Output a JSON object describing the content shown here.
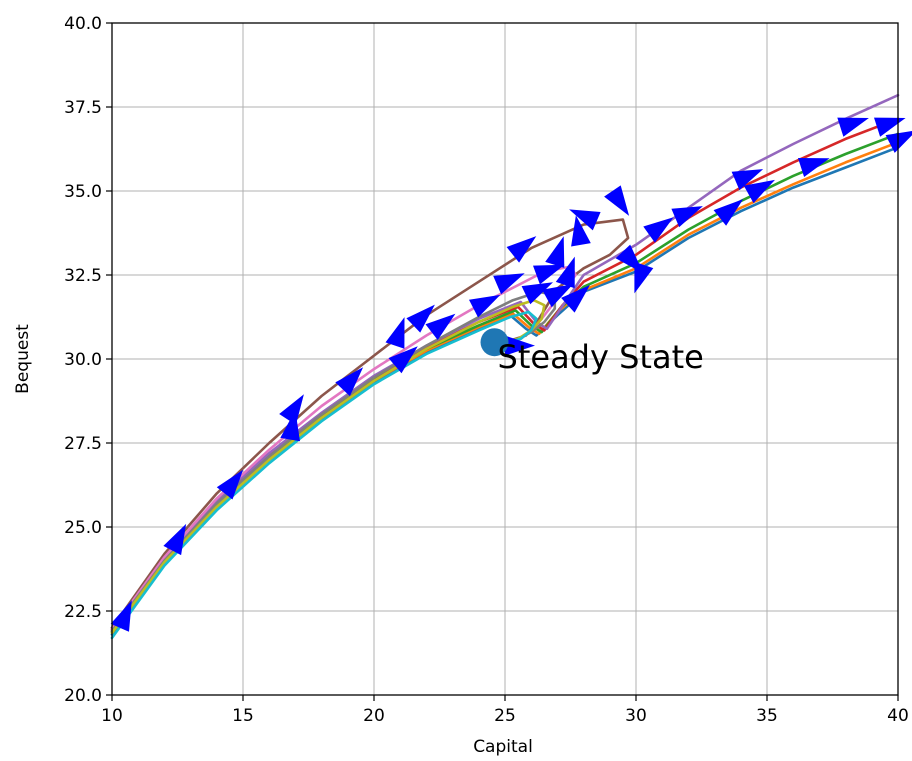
{
  "chart_data": {
    "type": "line",
    "title": "",
    "xlabel": "Capital",
    "ylabel": "Bequest",
    "xlim": [
      10,
      40
    ],
    "ylim": [
      20,
      40
    ],
    "xticks": [
      10,
      15,
      20,
      25,
      30,
      35,
      40
    ],
    "yticks": [
      20.0,
      22.5,
      25.0,
      27.5,
      30.0,
      32.5,
      35.0,
      37.5,
      40.0
    ],
    "xtick_labels": [
      "10",
      "15",
      "20",
      "25",
      "30",
      "35",
      "40"
    ],
    "ytick_labels": [
      "20.0",
      "22.5",
      "25.0",
      "27.5",
      "30.0",
      "32.5",
      "35.0",
      "37.5",
      "40.0"
    ],
    "grid": true,
    "legend": false,
    "annotation": {
      "text": "Steady State",
      "x": 24.6,
      "y": 30.5
    },
    "steady_state_point": {
      "x": 24.6,
      "y": 30.5,
      "color": "#1f77b4"
    },
    "arrow_color": "#0000ff",
    "series": [
      {
        "color": "#1f77b4",
        "points": [
          [
            10,
            21.8
          ],
          [
            12,
            23.9
          ],
          [
            14,
            25.6
          ],
          [
            16,
            27.0
          ],
          [
            18,
            28.2
          ],
          [
            20,
            29.3
          ],
          [
            22,
            30.2
          ],
          [
            24,
            30.9
          ],
          [
            25.2,
            31.3
          ],
          [
            25.8,
            30.9
          ],
          [
            26.2,
            30.7
          ],
          [
            27,
            31.3
          ],
          [
            28,
            32.0
          ],
          [
            30,
            32.6
          ],
          [
            32,
            33.6
          ],
          [
            34,
            34.4
          ],
          [
            36,
            35.1
          ],
          [
            38,
            35.7
          ],
          [
            40,
            36.3
          ]
        ]
      },
      {
        "color": "#ff7f0e",
        "points": [
          [
            10,
            21.85
          ],
          [
            12,
            23.95
          ],
          [
            14,
            25.65
          ],
          [
            16,
            27.05
          ],
          [
            18,
            28.25
          ],
          [
            20,
            29.35
          ],
          [
            22,
            30.25
          ],
          [
            24,
            30.95
          ],
          [
            25.3,
            31.35
          ],
          [
            25.9,
            30.95
          ],
          [
            26.3,
            30.75
          ],
          [
            27,
            31.4
          ],
          [
            28,
            32.05
          ],
          [
            30,
            32.7
          ],
          [
            32,
            33.7
          ],
          [
            34,
            34.5
          ],
          [
            36,
            35.2
          ],
          [
            38,
            35.85
          ],
          [
            40,
            36.45
          ]
        ]
      },
      {
        "color": "#2ca02c",
        "points": [
          [
            10,
            21.9
          ],
          [
            12,
            24.0
          ],
          [
            14,
            25.7
          ],
          [
            16,
            27.1
          ],
          [
            18,
            28.3
          ],
          [
            20,
            29.4
          ],
          [
            22,
            30.3
          ],
          [
            24,
            31.0
          ],
          [
            25.4,
            31.45
          ],
          [
            26.0,
            31.0
          ],
          [
            26.4,
            30.8
          ],
          [
            27.1,
            31.5
          ],
          [
            28,
            32.15
          ],
          [
            30,
            32.85
          ],
          [
            32,
            33.85
          ],
          [
            34,
            34.7
          ],
          [
            36,
            35.45
          ],
          [
            38,
            36.1
          ],
          [
            40,
            36.7
          ]
        ]
      },
      {
        "color": "#d62728",
        "points": [
          [
            10,
            21.95
          ],
          [
            12,
            24.05
          ],
          [
            14,
            25.75
          ],
          [
            16,
            27.15
          ],
          [
            18,
            28.35
          ],
          [
            20,
            29.45
          ],
          [
            22,
            30.35
          ],
          [
            24,
            31.1
          ],
          [
            25.5,
            31.55
          ],
          [
            26.1,
            31.05
          ],
          [
            26.5,
            30.85
          ],
          [
            27.2,
            31.6
          ],
          [
            28,
            32.3
          ],
          [
            30,
            33.1
          ],
          [
            32,
            34.2
          ],
          [
            34,
            35.1
          ],
          [
            36,
            35.85
          ],
          [
            38,
            36.55
          ],
          [
            40,
            37.15
          ]
        ]
      },
      {
        "color": "#9467bd",
        "points": [
          [
            10,
            22.0
          ],
          [
            12,
            24.1
          ],
          [
            14,
            25.8
          ],
          [
            16,
            27.2
          ],
          [
            18,
            28.4
          ],
          [
            20,
            29.5
          ],
          [
            22,
            30.4
          ],
          [
            24,
            31.2
          ],
          [
            25.6,
            31.7
          ],
          [
            26.2,
            31.1
          ],
          [
            26.6,
            30.9
          ],
          [
            27.3,
            31.7
          ],
          [
            28,
            32.5
          ],
          [
            30,
            33.4
          ],
          [
            32,
            34.5
          ],
          [
            34,
            35.6
          ],
          [
            36,
            36.4
          ],
          [
            38,
            37.15
          ],
          [
            40,
            37.85
          ]
        ]
      },
      {
        "color": "#8c564b",
        "points": [
          [
            10,
            22.0
          ],
          [
            12,
            24.2
          ],
          [
            14,
            26.0
          ],
          [
            16,
            27.5
          ],
          [
            18,
            28.9
          ],
          [
            20,
            30.1
          ],
          [
            22,
            31.3
          ],
          [
            24,
            32.3
          ],
          [
            26,
            33.3
          ],
          [
            28,
            34.0
          ],
          [
            29.5,
            34.15
          ],
          [
            29.7,
            33.6
          ],
          [
            29.0,
            33.1
          ],
          [
            28.0,
            32.7
          ],
          [
            27.0,
            32.1
          ],
          [
            26.3,
            31.2
          ],
          [
            25.8,
            30.7
          ],
          [
            25.0,
            30.5
          ]
        ]
      },
      {
        "color": "#e377c2",
        "points": [
          [
            10,
            21.95
          ],
          [
            12,
            24.1
          ],
          [
            14,
            25.85
          ],
          [
            16,
            27.3
          ],
          [
            18,
            28.6
          ],
          [
            20,
            29.7
          ],
          [
            22,
            30.7
          ],
          [
            24,
            31.6
          ],
          [
            25.5,
            32.2
          ],
          [
            26.5,
            32.6
          ],
          [
            27.5,
            32.75
          ],
          [
            27.7,
            32.5
          ],
          [
            27.2,
            32.0
          ],
          [
            26.6,
            31.4
          ],
          [
            26.1,
            30.9
          ],
          [
            25.6,
            30.6
          ],
          [
            25.0,
            30.5
          ]
        ]
      },
      {
        "color": "#7f7f7f",
        "points": [
          [
            10,
            21.9
          ],
          [
            12,
            24.0
          ],
          [
            14,
            25.7
          ],
          [
            16,
            27.1
          ],
          [
            18,
            28.35
          ],
          [
            20,
            29.45
          ],
          [
            22,
            30.4
          ],
          [
            24,
            31.25
          ],
          [
            25.3,
            31.75
          ],
          [
            26.3,
            32.0
          ],
          [
            26.9,
            31.9
          ],
          [
            26.9,
            31.5
          ],
          [
            26.5,
            31.1
          ],
          [
            26.0,
            30.8
          ],
          [
            25.4,
            30.55
          ],
          [
            25.0,
            30.5
          ]
        ]
      },
      {
        "color": "#bcbd22",
        "points": [
          [
            10,
            21.85
          ],
          [
            12,
            23.95
          ],
          [
            14,
            25.6
          ],
          [
            16,
            27.0
          ],
          [
            18,
            28.25
          ],
          [
            20,
            29.35
          ],
          [
            22,
            30.3
          ],
          [
            24,
            31.1
          ],
          [
            25.3,
            31.55
          ],
          [
            26.1,
            31.75
          ],
          [
            26.5,
            31.6
          ],
          [
            26.4,
            31.2
          ],
          [
            26.0,
            30.85
          ],
          [
            25.5,
            30.6
          ],
          [
            25.0,
            30.5
          ]
        ]
      },
      {
        "color": "#17becf",
        "points": [
          [
            10,
            21.7
          ],
          [
            12,
            23.85
          ],
          [
            14,
            25.5
          ],
          [
            16,
            26.9
          ],
          [
            18,
            28.15
          ],
          [
            20,
            29.25
          ],
          [
            22,
            30.15
          ],
          [
            24,
            30.85
          ],
          [
            25.2,
            31.25
          ],
          [
            25.9,
            31.4
          ],
          [
            26.2,
            31.2
          ],
          [
            26.0,
            30.85
          ],
          [
            25.6,
            30.6
          ],
          [
            25.1,
            30.5
          ]
        ]
      }
    ],
    "arrows": [
      [
        10.3,
        22.0,
        0.5,
        0.9
      ],
      [
        12.3,
        24.3,
        0.4,
        0.6
      ],
      [
        14.3,
        26.0,
        0.6,
        0.6
      ],
      [
        16.8,
        27.6,
        0.2,
        0.9
      ],
      [
        16.7,
        28.2,
        0.5,
        0.6
      ],
      [
        18.8,
        29.1,
        0.6,
        0.5
      ],
      [
        20.8,
        29.8,
        0.6,
        0.4
      ],
      [
        20.8,
        30.4,
        0.3,
        0.7
      ],
      [
        21.5,
        31.0,
        0.8,
        0.6
      ],
      [
        22.2,
        30.8,
        0.5,
        0.3
      ],
      [
        23.8,
        31.5,
        1.0,
        0.4
      ],
      [
        24.7,
        32.2,
        0.6,
        0.2
      ],
      [
        25.3,
        33.1,
        0.8,
        0.5
      ],
      [
        25.8,
        31.9,
        0.8,
        0.3
      ],
      [
        26.2,
        32.5,
        0.7,
        0.2
      ],
      [
        26.9,
        32.8,
        0.2,
        0.5
      ],
      [
        27.3,
        32.2,
        0.3,
        0.7
      ],
      [
        27.9,
        33.4,
        -0.2,
        0.9
      ],
      [
        28.5,
        34.1,
        -0.9,
        0.3
      ],
      [
        29.1,
        35.0,
        0.6,
        -0.7
      ],
      [
        29.5,
        33.2,
        0.6,
        -0.5
      ],
      [
        30.3,
        32.8,
        -0.3,
        -0.7
      ],
      [
        30.5,
        33.7,
        0.9,
        0.5
      ],
      [
        31.5,
        34.2,
        0.9,
        0.3
      ],
      [
        33.2,
        34.2,
        0.8,
        0.5
      ],
      [
        33.8,
        35.3,
        0.9,
        0.3
      ],
      [
        34.3,
        34.9,
        0.7,
        0.3
      ],
      [
        36.3,
        35.7,
        0.8,
        0.2
      ],
      [
        37.8,
        36.9,
        0.8,
        0.2
      ],
      [
        39.2,
        36.9,
        0.8,
        0.2
      ],
      [
        39.7,
        36.4,
        0.5,
        0.2
      ],
      [
        25.0,
        30.4,
        1.4,
        0.0
      ],
      [
        26.6,
        31.8,
        0.7,
        0.3
      ],
      [
        27.4,
        31.6,
        0.7,
        0.5
      ]
    ]
  }
}
